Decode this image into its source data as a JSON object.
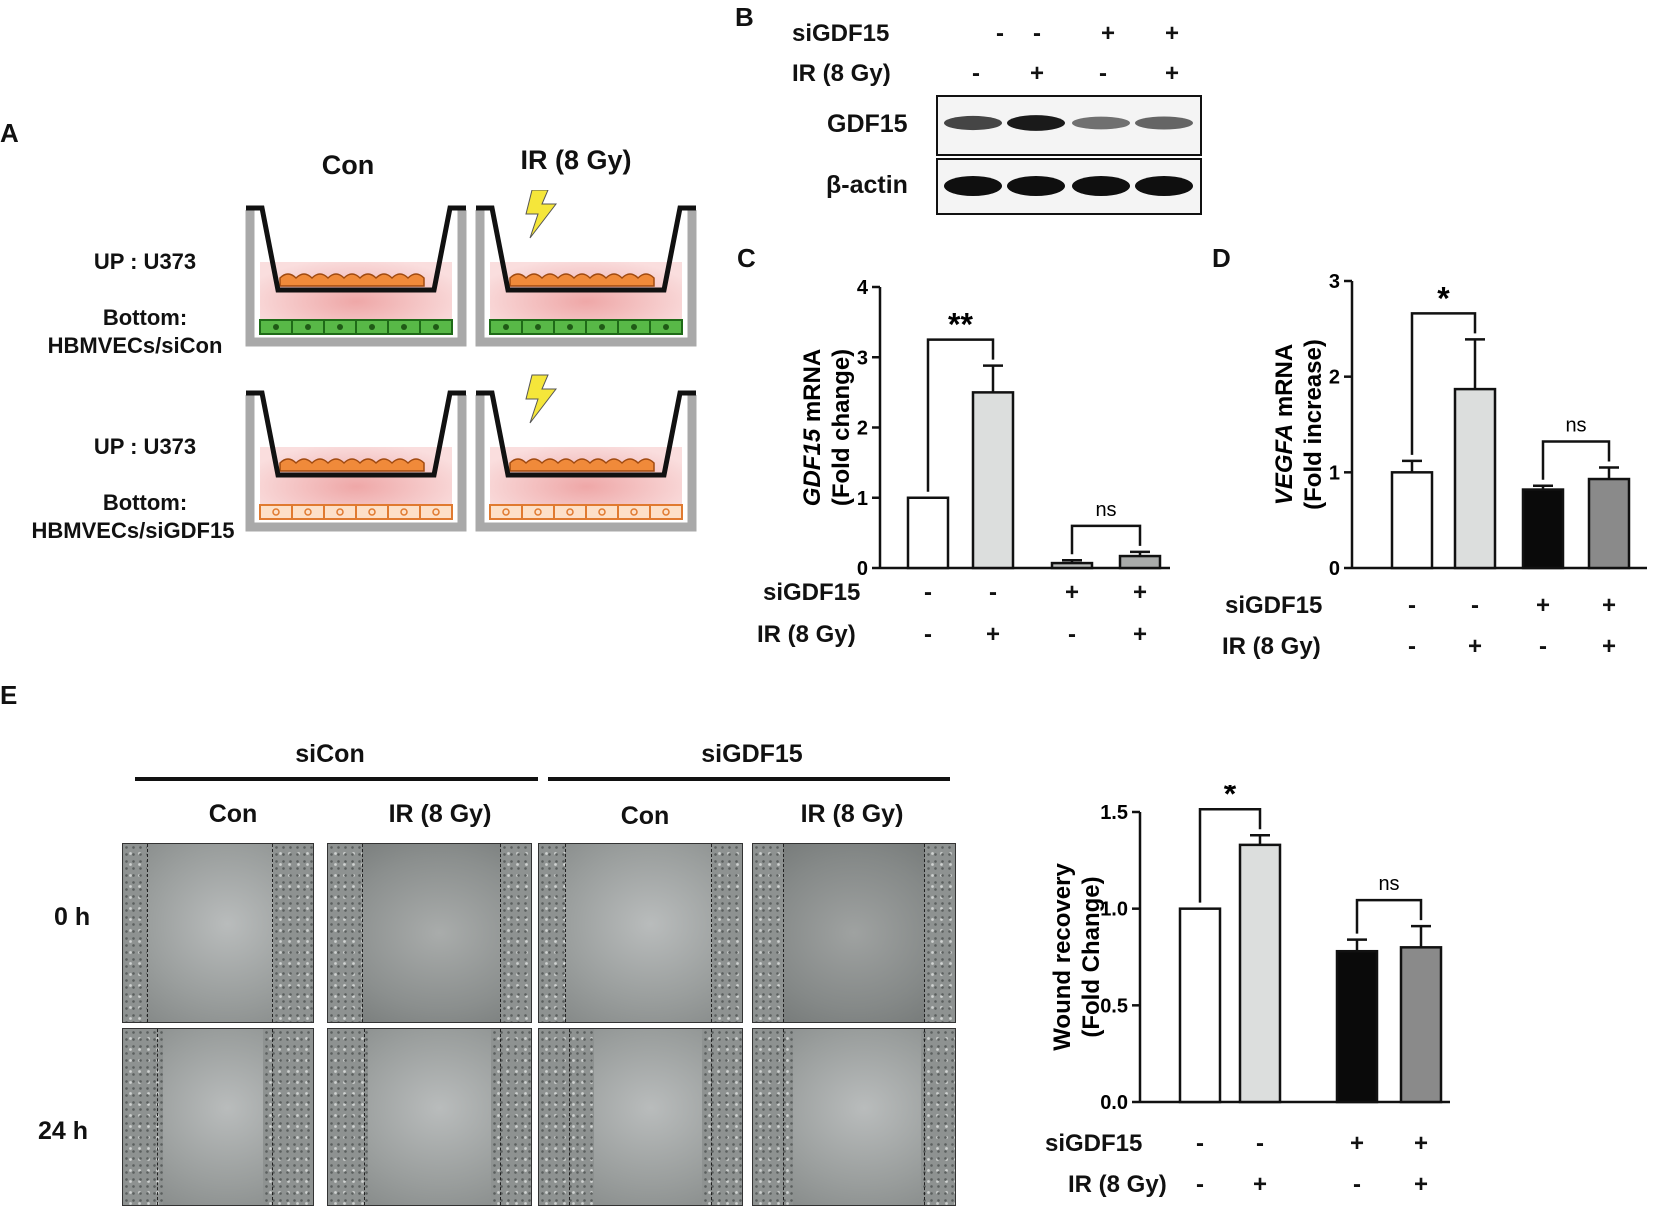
{
  "panel_labels": {
    "a": "A",
    "b": "B",
    "c": "C",
    "d": "D",
    "e": "E"
  },
  "panel_a": {
    "col_headers": [
      "Con",
      "IR (8 Gy)"
    ],
    "rows": [
      {
        "up": "UP : U373",
        "bottom_1": "Bottom:",
        "bottom_2": "HBMVECs/siCon"
      },
      {
        "up": "UP : U373",
        "bottom_1": "Bottom:",
        "bottom_2": "HBMVECs/siGDF15"
      }
    ],
    "colors": {
      "medium": "#f6c8c8",
      "medium_center": "#e98a8a",
      "cell_green": "#58b847",
      "cell_orange_fill": "#fde0c8",
      "cell_orange_edge": "#e07a30",
      "bolt": "#f5e63a",
      "insert": "#111111",
      "well": "#a9a9a9"
    }
  },
  "panel_b": {
    "conditions": [
      {
        "label": "siGDF15",
        "values": [
          "-",
          "-",
          "+",
          "+"
        ]
      },
      {
        "label": "IR (8 Gy)",
        "values": [
          "-",
          "+",
          "-",
          "+"
        ]
      }
    ],
    "blots": [
      {
        "label": "GDF15",
        "intensities": [
          0.75,
          0.95,
          0.55,
          0.6
        ]
      },
      {
        "label": "β-actin",
        "intensities": [
          1,
          1,
          1,
          1
        ]
      }
    ]
  },
  "panel_c": {
    "conditions": [
      {
        "label": "siGDF15",
        "values": [
          "-",
          "-",
          "+",
          "+"
        ]
      },
      {
        "label": "IR (8 Gy)",
        "values": [
          "-",
          "+",
          "-",
          "+"
        ]
      }
    ]
  },
  "panel_d": {
    "conditions": [
      {
        "label": "siGDF15",
        "values": [
          "-",
          "-",
          "+",
          "+"
        ]
      },
      {
        "label": "IR (8 Gy)",
        "values": [
          "-",
          "+",
          "-",
          "+"
        ]
      }
    ]
  },
  "panel_e": {
    "groups": [
      "siCon",
      "siGDF15"
    ],
    "columns": [
      "Con",
      "IR (8 Gy)",
      "Con",
      "IR (8 Gy)"
    ],
    "rows": [
      "0 h",
      "24 h"
    ],
    "conditions": [
      {
        "label": "siGDF15",
        "values": [
          "-",
          "-",
          "+",
          "+"
        ]
      },
      {
        "label": "IR (8 Gy)",
        "values": [
          "-",
          "+",
          "-",
          "+"
        ]
      }
    ]
  },
  "chart_data": [
    {
      "id": "C",
      "type": "bar",
      "ylabel_italic": "GDF15",
      "ylabel_rest": " mRNA",
      "ylabel_line2": "(Fold change)",
      "ylim": [
        0,
        4
      ],
      "yticks": [
        "0",
        "1",
        "2",
        "3",
        "4"
      ],
      "values": [
        1.0,
        2.5,
        0.07,
        0.17
      ],
      "errors": [
        0,
        0.38,
        0.04,
        0.06
      ],
      "colors": [
        "#ffffff",
        "#dcdedd",
        "#bdbfbe",
        "#a9abaa"
      ],
      "sig": [
        {
          "from": 0,
          "to": 1,
          "label": "**"
        },
        {
          "from": 2,
          "to": 3,
          "label": "ns"
        }
      ]
    },
    {
      "id": "D",
      "type": "bar",
      "ylabel_italic": "VEGFA",
      "ylabel_rest": " mRNA",
      "ylabel_line2": "(Fold increase)",
      "ylim": [
        0,
        3
      ],
      "yticks": [
        "0",
        "1",
        "2",
        "3"
      ],
      "values": [
        1.0,
        1.87,
        0.82,
        0.93
      ],
      "errors": [
        0.12,
        0.52,
        0.04,
        0.12
      ],
      "colors": [
        "#ffffff",
        "#dcdedd",
        "#0a0a0a",
        "#8a8a8a"
      ],
      "sig": [
        {
          "from": 0,
          "to": 1,
          "label": "*"
        },
        {
          "from": 2,
          "to": 3,
          "label": "ns"
        }
      ]
    },
    {
      "id": "E",
      "type": "bar",
      "ylabel_italic": "",
      "ylabel_rest": "Wound recovery",
      "ylabel_line2": "(Fold Change)",
      "ylim": [
        0,
        1.5
      ],
      "yticks": [
        "0.0",
        "0.5",
        "1.0",
        "1.5"
      ],
      "values": [
        1.0,
        1.33,
        0.78,
        0.8
      ],
      "errors": [
        0,
        0.05,
        0.06,
        0.11
      ],
      "colors": [
        "#ffffff",
        "#dcdedd",
        "#0a0a0a",
        "#8a8a8a"
      ],
      "sig": [
        {
          "from": 0,
          "to": 1,
          "label": "*"
        },
        {
          "from": 2,
          "to": 3,
          "label": "ns"
        }
      ]
    }
  ]
}
